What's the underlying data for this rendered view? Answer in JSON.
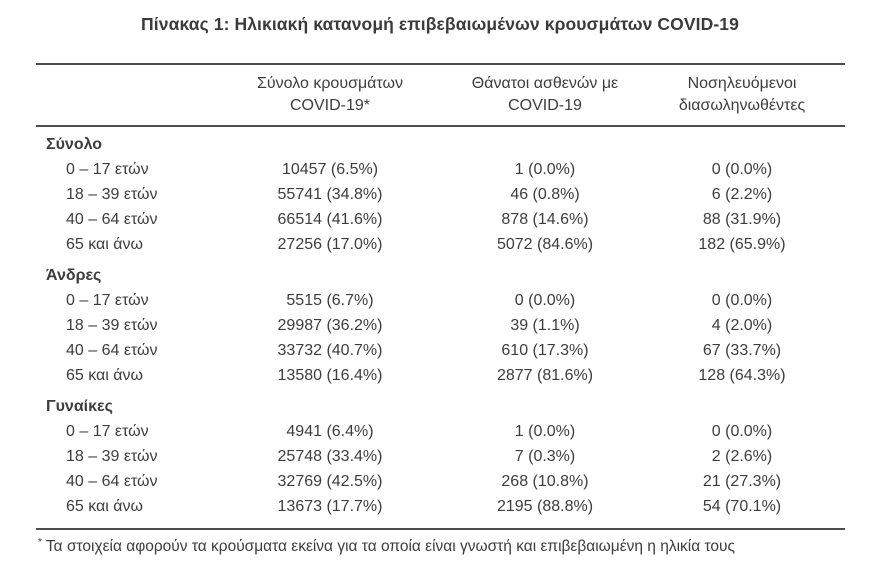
{
  "title": "Πίνακας 1: Ηλικιακή κατανομή επιβεβαιωμένων κρουσμάτων COVID-19",
  "table": {
    "columns": [
      {
        "line1": "Σύνολο κρουσμάτων",
        "line2": "COVID-19*"
      },
      {
        "line1": "Θάνατοι ασθενών με",
        "line2": "COVID-19"
      },
      {
        "line1": "Νοσηλευόμενοι",
        "line2": "διασωληνωθέντες"
      }
    ],
    "sections": [
      {
        "label": "Σύνολο",
        "rows": [
          {
            "age": "0 – 17 ετών",
            "cases": "10457 (6.5%)",
            "deaths": "1 (0.0%)",
            "intubated": "0 (0.0%)"
          },
          {
            "age": "18 – 39 ετών",
            "cases": "55741 (34.8%)",
            "deaths": "46 (0.8%)",
            "intubated": "6 (2.2%)"
          },
          {
            "age": "40 – 64 ετών",
            "cases": "66514 (41.6%)",
            "deaths": "878 (14.6%)",
            "intubated": "88 (31.9%)"
          },
          {
            "age": "65 και άνω",
            "cases": "27256 (17.0%)",
            "deaths": "5072 (84.6%)",
            "intubated": "182 (65.9%)"
          }
        ]
      },
      {
        "label": "Άνδρες",
        "rows": [
          {
            "age": "0 – 17 ετών",
            "cases": "5515 (6.7%)",
            "deaths": "0 (0.0%)",
            "intubated": "0 (0.0%)"
          },
          {
            "age": "18 – 39 ετών",
            "cases": "29987 (36.2%)",
            "deaths": "39 (1.1%)",
            "intubated": "4 (2.0%)"
          },
          {
            "age": "40 – 64 ετών",
            "cases": "33732 (40.7%)",
            "deaths": "610 (17.3%)",
            "intubated": "67 (33.7%)"
          },
          {
            "age": "65 και άνω",
            "cases": "13580 (16.4%)",
            "deaths": "2877 (81.6%)",
            "intubated": "128 (64.3%)"
          }
        ]
      },
      {
        "label": "Γυναίκες",
        "rows": [
          {
            "age": "0 – 17 ετών",
            "cases": "4941 (6.4%)",
            "deaths": "1 (0.0%)",
            "intubated": "0 (0.0%)"
          },
          {
            "age": "18 – 39 ετών",
            "cases": "25748 (33.4%)",
            "deaths": "7 (0.3%)",
            "intubated": "2 (2.6%)"
          },
          {
            "age": "40 – 64 ετών",
            "cases": "32769 (42.5%)",
            "deaths": "268 (10.8%)",
            "intubated": "21 (27.3%)"
          },
          {
            "age": "65 και άνω",
            "cases": "13673 (17.7%)",
            "deaths": "2195 (88.8%)",
            "intubated": "54 (70.1%)"
          }
        ]
      }
    ]
  },
  "footnote": {
    "marker": "*",
    "text": "Τα στοιχεία αφορούν τα κρούσματα εκείνα για τα οποία είναι γνωστή και επιβεβαιωμένη η ηλικία τους"
  },
  "colors": {
    "background": "#ffffff",
    "text": "#3d3d3d",
    "rule": "#4d4d4d"
  }
}
